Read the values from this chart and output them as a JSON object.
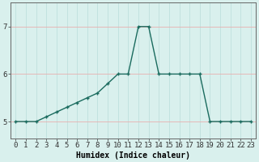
{
  "x": [
    0,
    1,
    2,
    3,
    4,
    5,
    6,
    7,
    8,
    9,
    10,
    11,
    12,
    13,
    14,
    15,
    16,
    17,
    18,
    19,
    20,
    21,
    22,
    23
  ],
  "y": [
    5.0,
    5.0,
    5.0,
    5.1,
    5.2,
    5.3,
    5.4,
    5.5,
    5.6,
    5.8,
    6.0,
    6.0,
    7.0,
    7.0,
    6.0,
    6.0,
    6.0,
    6.0,
    6.0,
    5.0,
    5.0,
    5.0,
    5.0,
    5.0
  ],
  "line_color": "#1a6b5e",
  "marker": "+",
  "marker_size": 3,
  "marker_lw": 1.0,
  "bg_color": "#d9f0ed",
  "grid_color_v": "#b8ddd9",
  "grid_color_h": "#e8b0b0",
  "xlabel": "Humidex (Indice chaleur)",
  "xlim": [
    -0.5,
    23.5
  ],
  "ylim": [
    4.65,
    7.5
  ],
  "yticks": [
    5,
    6,
    7
  ],
  "xticks": [
    0,
    1,
    2,
    3,
    4,
    5,
    6,
    7,
    8,
    9,
    10,
    11,
    12,
    13,
    14,
    15,
    16,
    17,
    18,
    19,
    20,
    21,
    22,
    23
  ],
  "xlabel_fontsize": 7,
  "tick_fontsize": 6.5,
  "line_width": 1.0
}
